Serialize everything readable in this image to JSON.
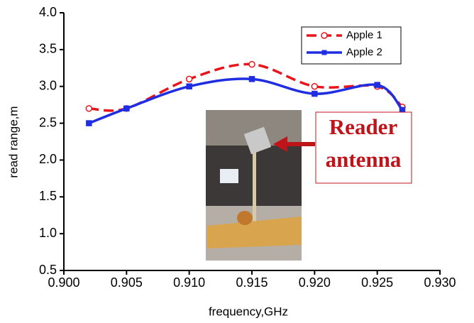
{
  "chart_data": {
    "type": "line",
    "x_label": "frequency,GHz",
    "y_label": "read range,m",
    "x": [
      0.902,
      0.905,
      0.91,
      0.915,
      0.92,
      0.925,
      0.927
    ],
    "series": [
      {
        "name": "Apple 1",
        "color": "#e8141b",
        "dashed": true,
        "marker": "circle",
        "values": [
          2.7,
          2.7,
          3.1,
          3.3,
          3.0,
          3.0,
          2.72
        ]
      },
      {
        "name": "Apple 2",
        "color": "#1f2ee0",
        "dashed": false,
        "marker": "square",
        "values": [
          2.5,
          2.7,
          3.0,
          3.1,
          2.9,
          3.02,
          2.68
        ]
      }
    ],
    "xlim": [
      0.9,
      0.93
    ],
    "xticks": [
      {
        "value": 0.9,
        "label": "0.900"
      },
      {
        "value": 0.905,
        "label": "0.905"
      },
      {
        "value": 0.91,
        "label": "0.910"
      },
      {
        "value": 0.915,
        "label": "0.915"
      },
      {
        "value": 0.92,
        "label": "0.920"
      },
      {
        "value": 0.925,
        "label": "0.925"
      },
      {
        "value": 0.93,
        "label": "0.930"
      }
    ],
    "ylim": [
      0.5,
      4.0
    ],
    "yticks": [
      0.5,
      {
        "value": 1.0,
        "label": "1.0"
      },
      1.5,
      {
        "value": 2.0,
        "label": "2.0"
      },
      2.5,
      {
        "value": 3.0,
        "label": "3.0"
      },
      3.5,
      {
        "value": 4.0,
        "label": "4.0"
      }
    ],
    "legend": "upper right",
    "annotation": [
      "Reader",
      "antenna"
    ]
  }
}
